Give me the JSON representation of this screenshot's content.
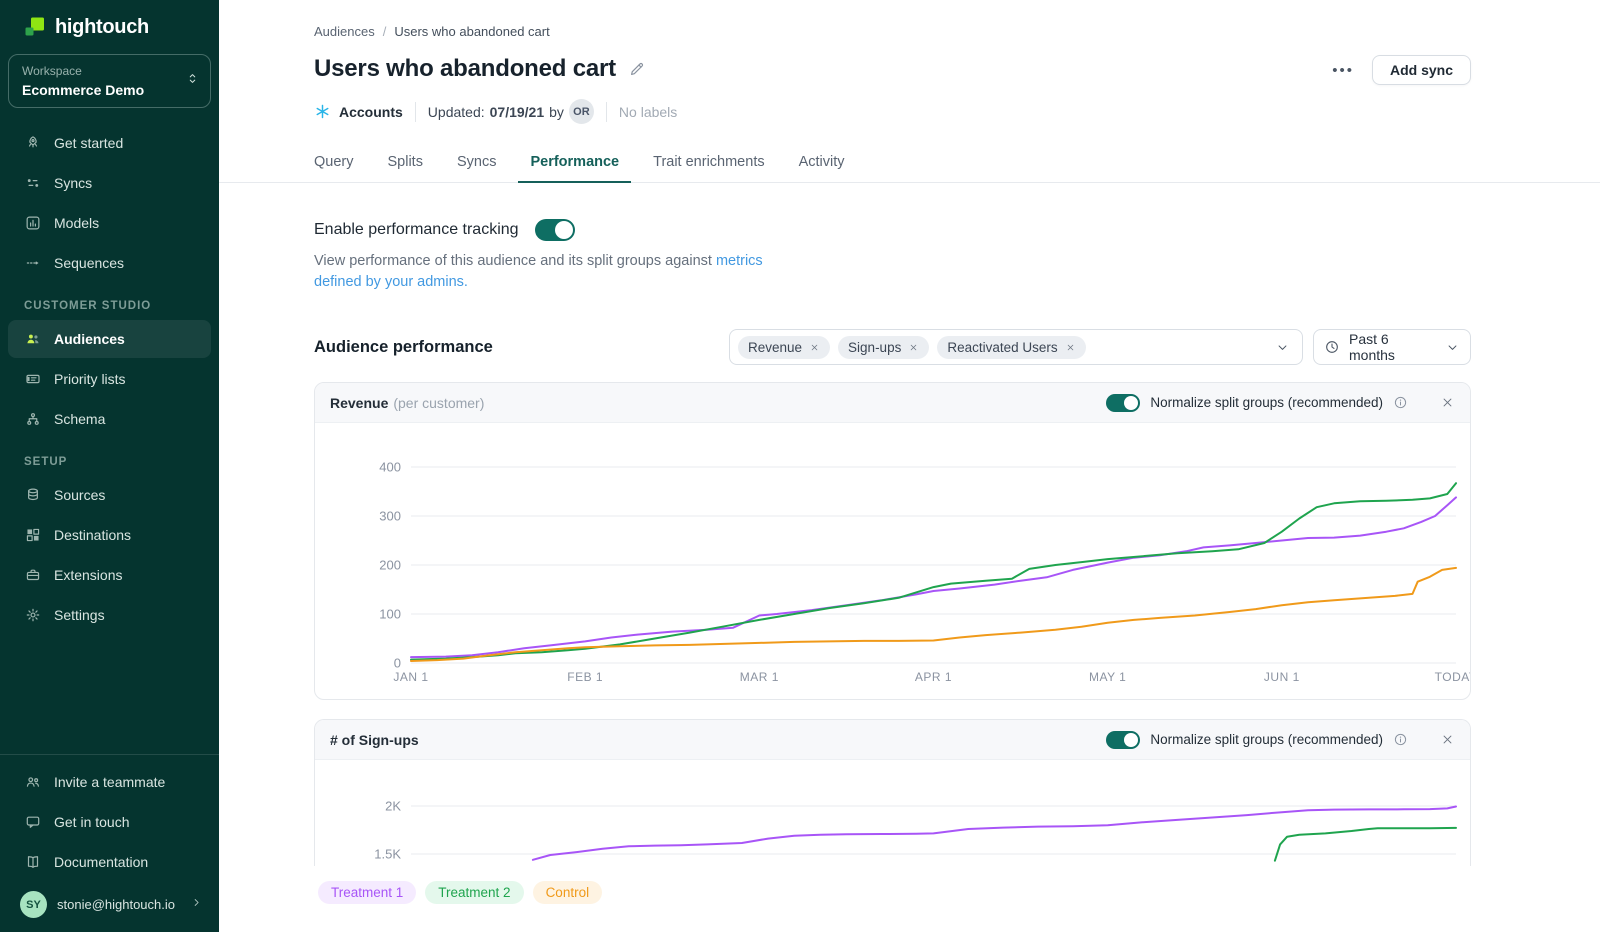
{
  "brand": {
    "name": "hightouch",
    "logo_big_color": "#8FE513",
    "logo_small_color": "#2EA24B"
  },
  "workspace": {
    "label": "Workspace",
    "name": "Ecommerce Demo"
  },
  "sidebar": {
    "nav": [
      {
        "label": "Get started",
        "icon": "rocket-icon"
      },
      {
        "label": "Syncs",
        "icon": "syncs-icon"
      },
      {
        "label": "Models",
        "icon": "models-icon"
      },
      {
        "label": "Sequences",
        "icon": "sequences-icon"
      }
    ],
    "sections": [
      {
        "label": "CUSTOMER STUDIO",
        "items": [
          {
            "label": "Audiences",
            "icon": "users-icon",
            "active": true
          },
          {
            "label": "Priority lists",
            "icon": "priority-lists-icon"
          },
          {
            "label": "Schema",
            "icon": "schema-icon"
          }
        ]
      },
      {
        "label": "SETUP",
        "items": [
          {
            "label": "Sources",
            "icon": "database-icon"
          },
          {
            "label": "Destinations",
            "icon": "grid-icon"
          },
          {
            "label": "Extensions",
            "icon": "briefcase-icon"
          },
          {
            "label": "Settings",
            "icon": "gear-icon"
          }
        ]
      }
    ],
    "footer_items": [
      {
        "label": "Invite a teammate",
        "icon": "invite-teammate-icon"
      },
      {
        "label": "Get in touch",
        "icon": "chat-icon"
      },
      {
        "label": "Documentation",
        "icon": "book-icon"
      }
    ],
    "user": {
      "initials": "SY",
      "email": "stonie@hightouch.io"
    }
  },
  "header": {
    "breadcrumb": [
      "Audiences",
      "Users who abandoned cart"
    ],
    "title": "Users who abandoned cart",
    "source_name": "Accounts",
    "updated_label": "Updated:",
    "updated_date": "07/19/21",
    "updated_by_label": "by",
    "updated_by_initials": "OR",
    "labels_text": "No labels",
    "menu_glyph": "•••",
    "add_sync_label": "Add sync"
  },
  "tabs": [
    {
      "label": "Query"
    },
    {
      "label": "Splits"
    },
    {
      "label": "Syncs"
    },
    {
      "label": "Performance",
      "active": true
    },
    {
      "label": "Trait enrichments"
    },
    {
      "label": "Activity"
    }
  ],
  "performance": {
    "toggle_label": "Enable performance tracking",
    "toggle_on": true,
    "description_text": "View performance of this audience and its split groups against ",
    "description_link": "metrics defined by your admins.",
    "section_title": "Audience performance",
    "metric_chips": [
      "Revenue",
      "Sign-ups",
      "Reactivated Users"
    ],
    "time_range": "Past 6 months"
  },
  "legend": [
    {
      "label": "Treatment 1",
      "text_color": "#A855F7",
      "bg_color": "#F5EBFF"
    },
    {
      "label": "Treatment 2",
      "text_color": "#1FA44E",
      "bg_color": "#E4F8EC"
    },
    {
      "label": "Control",
      "text_color": "#F09A1A",
      "bg_color": "#FEF3E2"
    }
  ],
  "chart_data": [
    {
      "type": "line",
      "title": "Revenue",
      "title_suffix": "(per customer)",
      "normalize_label": "Normalize split groups (recommended)",
      "normalize_on": true,
      "ylim": [
        0,
        450
      ],
      "grid": true,
      "yticks": [
        {
          "v": 400,
          "label": "400"
        },
        {
          "v": 300,
          "label": "300"
        },
        {
          "v": 200,
          "label": "200"
        },
        {
          "v": 100,
          "label": "100"
        },
        {
          "v": 0,
          "label": "0"
        }
      ],
      "xticks": [
        {
          "t": 0,
          "label": "JAN 1"
        },
        {
          "t": 1,
          "label": "FEB 1"
        },
        {
          "t": 2,
          "label": "MAR 1"
        },
        {
          "t": 3,
          "label": "APR 1"
        },
        {
          "t": 4,
          "label": "MAY 1"
        },
        {
          "t": 5,
          "label": "JUN 1"
        },
        {
          "t": 6,
          "label": "TODAY"
        }
      ],
      "series": [
        {
          "name": "Treatment 1",
          "color": "#A855F7",
          "points": [
            [
              0,
              12
            ],
            [
              0.2,
              13
            ],
            [
              0.35,
              16
            ],
            [
              0.5,
              22
            ],
            [
              0.65,
              30
            ],
            [
              0.8,
              36
            ],
            [
              0.9,
              40
            ],
            [
              1,
              44
            ],
            [
              1.15,
              52
            ],
            [
              1.3,
              58
            ],
            [
              1.5,
              64
            ],
            [
              1.7,
              68
            ],
            [
              1.85,
              72
            ],
            [
              2,
              97
            ],
            [
              2.1,
              100
            ],
            [
              2.3,
              108
            ],
            [
              2.5,
              118
            ],
            [
              2.7,
              128
            ],
            [
              2.9,
              140
            ],
            [
              3,
              147
            ],
            [
              3.15,
              152
            ],
            [
              3.35,
              160
            ],
            [
              3.5,
              168
            ],
            [
              3.65,
              175
            ],
            [
              3.8,
              190
            ],
            [
              4,
              205
            ],
            [
              4.15,
              215
            ],
            [
              4.3,
              220
            ],
            [
              4.45,
              228
            ],
            [
              4.55,
              236
            ],
            [
              4.7,
              240
            ],
            [
              4.85,
              245
            ],
            [
              5,
              250
            ],
            [
              5.15,
              255
            ],
            [
              5.3,
              256
            ],
            [
              5.45,
              260
            ],
            [
              5.6,
              268
            ],
            [
              5.7,
              275
            ],
            [
              5.8,
              288
            ],
            [
              5.88,
              300
            ],
            [
              5.95,
              322
            ],
            [
              6,
              338
            ]
          ]
        },
        {
          "name": "Treatment 2",
          "color": "#1FA44E",
          "points": [
            [
              0,
              7
            ],
            [
              0.2,
              9
            ],
            [
              0.35,
              12
            ],
            [
              0.5,
              16
            ],
            [
              0.6,
              20
            ],
            [
              0.75,
              22
            ],
            [
              0.9,
              26
            ],
            [
              1,
              29
            ],
            [
              1.2,
              38
            ],
            [
              1.4,
              50
            ],
            [
              1.6,
              62
            ],
            [
              1.8,
              75
            ],
            [
              2,
              88
            ],
            [
              2.2,
              100
            ],
            [
              2.4,
              112
            ],
            [
              2.6,
              122
            ],
            [
              2.8,
              133
            ],
            [
              3,
              155
            ],
            [
              3.1,
              162
            ],
            [
              3.3,
              168
            ],
            [
              3.45,
              172
            ],
            [
              3.55,
              192
            ],
            [
              3.7,
              200
            ],
            [
              3.85,
              206
            ],
            [
              4,
              212
            ],
            [
              4.2,
              218
            ],
            [
              4.4,
              224
            ],
            [
              4.6,
              228
            ],
            [
              4.75,
              232
            ],
            [
              4.9,
              245
            ],
            [
              5,
              268
            ],
            [
              5.1,
              295
            ],
            [
              5.2,
              318
            ],
            [
              5.3,
              326
            ],
            [
              5.45,
              330
            ],
            [
              5.6,
              331
            ],
            [
              5.75,
              333
            ],
            [
              5.85,
              336
            ],
            [
              5.95,
              345
            ],
            [
              6,
              367
            ]
          ]
        },
        {
          "name": "Control",
          "color": "#F09A1A",
          "points": [
            [
              0,
              4
            ],
            [
              0.15,
              6
            ],
            [
              0.3,
              9
            ],
            [
              0.45,
              16
            ],
            [
              0.6,
              22
            ],
            [
              0.75,
              26
            ],
            [
              0.9,
              30
            ],
            [
              1,
              32
            ],
            [
              1.2,
              34
            ],
            [
              1.4,
              36
            ],
            [
              1.6,
              37
            ],
            [
              1.8,
              39
            ],
            [
              2,
              41
            ],
            [
              2.2,
              43
            ],
            [
              2.4,
              44
            ],
            [
              2.6,
              45
            ],
            [
              2.8,
              45
            ],
            [
              3,
              46
            ],
            [
              3.15,
              52
            ],
            [
              3.3,
              57
            ],
            [
              3.5,
              62
            ],
            [
              3.7,
              68
            ],
            [
              3.85,
              74
            ],
            [
              4,
              82
            ],
            [
              4.15,
              88
            ],
            [
              4.3,
              92
            ],
            [
              4.5,
              97
            ],
            [
              4.7,
              104
            ],
            [
              4.85,
              110
            ],
            [
              5,
              118
            ],
            [
              5.15,
              124
            ],
            [
              5.3,
              128
            ],
            [
              5.5,
              133
            ],
            [
              5.65,
              137
            ],
            [
              5.75,
              141
            ],
            [
              5.78,
              166
            ],
            [
              5.85,
              176
            ],
            [
              5.92,
              190
            ],
            [
              6,
              194
            ]
          ]
        }
      ]
    },
    {
      "type": "line",
      "title": "# of Sign-ups",
      "title_suffix": "",
      "normalize_label": "Normalize split groups (recommended)",
      "normalize_on": true,
      "ylim": [
        1500,
        2100
      ],
      "grid": true,
      "yticks": [
        {
          "v": 2000,
          "label": "2K"
        },
        {
          "v": 1500,
          "label": "1.5K"
        }
      ],
      "xticks": [],
      "series": [
        {
          "name": "Treatment 1",
          "color": "#A855F7",
          "points": [
            [
              0.7,
              1440
            ],
            [
              0.8,
              1490
            ],
            [
              0.95,
              1520
            ],
            [
              1.1,
              1555
            ],
            [
              1.25,
              1580
            ],
            [
              1.4,
              1588
            ],
            [
              1.55,
              1592
            ],
            [
              1.7,
              1600
            ],
            [
              1.9,
              1615
            ],
            [
              2.05,
              1660
            ],
            [
              2.2,
              1690
            ],
            [
              2.35,
              1700
            ],
            [
              2.5,
              1705
            ],
            [
              2.7,
              1708
            ],
            [
              2.9,
              1710
            ],
            [
              3,
              1715
            ],
            [
              3.2,
              1760
            ],
            [
              3.4,
              1775
            ],
            [
              3.6,
              1785
            ],
            [
              3.8,
              1790
            ],
            [
              4,
              1800
            ],
            [
              4.2,
              1830
            ],
            [
              4.4,
              1855
            ],
            [
              4.6,
              1880
            ],
            [
              4.8,
              1905
            ],
            [
              5,
              1935
            ],
            [
              5.15,
              1955
            ],
            [
              5.3,
              1962
            ],
            [
              5.5,
              1965
            ],
            [
              5.7,
              1966
            ],
            [
              5.85,
              1968
            ],
            [
              5.95,
              1975
            ],
            [
              6,
              1995
            ]
          ]
        },
        {
          "name": "Treatment 2",
          "color": "#1FA44E",
          "points": [
            [
              4.96,
              1430
            ],
            [
              4.99,
              1600
            ],
            [
              5.03,
              1680
            ],
            [
              5.1,
              1700
            ],
            [
              5.25,
              1715
            ],
            [
              5.4,
              1740
            ],
            [
              5.5,
              1760
            ],
            [
              5.55,
              1768
            ],
            [
              5.7,
              1768
            ],
            [
              5.85,
              1769
            ],
            [
              6,
              1772
            ]
          ]
        }
      ]
    }
  ]
}
